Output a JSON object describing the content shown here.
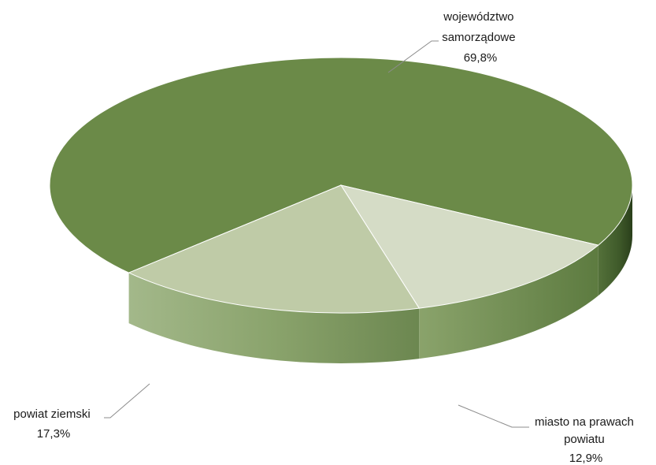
{
  "chart_data": {
    "type": "pie",
    "style": "3d",
    "title": "",
    "slices": [
      {
        "name": "województwo samorządowe",
        "label_lines": [
          "województwo",
          "samorządowe"
        ],
        "value": 69.8,
        "value_label": "69,8%",
        "color": "#6b8a48"
      },
      {
        "name": "miasto na prawach powiatu",
        "label_lines": [
          "miasto na prawach",
          "powiatu"
        ],
        "value": 12.9,
        "value_label": "12,9%",
        "color": "#d5dcc6"
      },
      {
        "name": "powiat ziemski",
        "label_lines": [
          "powiat ziemski"
        ],
        "value": 17.3,
        "value_label": "17,3%",
        "color": "#bfcba7"
      }
    ]
  }
}
